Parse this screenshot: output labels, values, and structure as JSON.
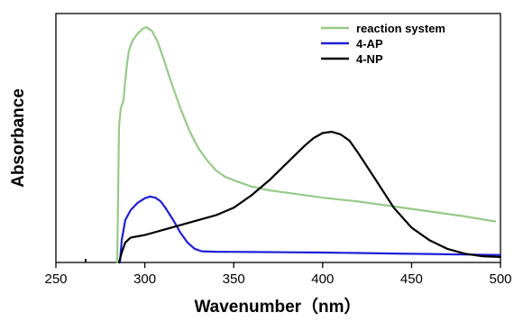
{
  "chart_data": {
    "type": "line",
    "title": "",
    "xlabel": "Wavenumber（nm）",
    "ylabel": "Absorbance",
    "xlim": [
      250,
      500
    ],
    "ylim": [
      0,
      1
    ],
    "x_ticks": [
      250,
      300,
      350,
      400,
      450,
      500
    ],
    "y_ticks_visible": false,
    "grid": false,
    "legend_position": "top-right",
    "series": [
      {
        "name": "reaction system",
        "color": "#98c98a",
        "points": [
          [
            284.5,
            0.0
          ],
          [
            285.5,
            0.55
          ],
          [
            286.5,
            0.62
          ],
          [
            288,
            0.65
          ],
          [
            289,
            0.73
          ],
          [
            290,
            0.8
          ],
          [
            291,
            0.85
          ],
          [
            293,
            0.89
          ],
          [
            296,
            0.92
          ],
          [
            299,
            0.94
          ],
          [
            301,
            0.945
          ],
          [
            304,
            0.93
          ],
          [
            307,
            0.89
          ],
          [
            310,
            0.83
          ],
          [
            315,
            0.72
          ],
          [
            320,
            0.62
          ],
          [
            325,
            0.53
          ],
          [
            330,
            0.46
          ],
          [
            335,
            0.41
          ],
          [
            340,
            0.37
          ],
          [
            345,
            0.345
          ],
          [
            350,
            0.33
          ],
          [
            360,
            0.305
          ],
          [
            370,
            0.29
          ],
          [
            380,
            0.28
          ],
          [
            400,
            0.26
          ],
          [
            420,
            0.245
          ],
          [
            440,
            0.225
          ],
          [
            460,
            0.205
          ],
          [
            480,
            0.185
          ],
          [
            497,
            0.165
          ]
        ]
      },
      {
        "name": "4-AP",
        "color": "#1f1fd6",
        "points": [
          [
            286,
            0.0
          ],
          [
            287,
            0.09
          ],
          [
            289,
            0.17
          ],
          [
            292,
            0.21
          ],
          [
            296,
            0.24
          ],
          [
            300,
            0.258
          ],
          [
            303,
            0.265
          ],
          [
            306,
            0.26
          ],
          [
            309,
            0.245
          ],
          [
            312,
            0.215
          ],
          [
            316,
            0.17
          ],
          [
            320,
            0.12
          ],
          [
            324,
            0.08
          ],
          [
            328,
            0.055
          ],
          [
            332,
            0.045
          ],
          [
            340,
            0.043
          ],
          [
            360,
            0.042
          ],
          [
            380,
            0.041
          ],
          [
            400,
            0.04
          ],
          [
            420,
            0.038
          ],
          [
            440,
            0.036
          ],
          [
            460,
            0.034
          ],
          [
            480,
            0.032
          ],
          [
            500,
            0.03
          ]
        ]
      },
      {
        "name": "4-NP",
        "color": "#000000",
        "points": [
          [
            285.5,
            0.0
          ],
          [
            287,
            0.04
          ],
          [
            289,
            0.08
          ],
          [
            292,
            0.1
          ],
          [
            296,
            0.105
          ],
          [
            300,
            0.11
          ],
          [
            310,
            0.13
          ],
          [
            320,
            0.15
          ],
          [
            330,
            0.17
          ],
          [
            340,
            0.19
          ],
          [
            350,
            0.22
          ],
          [
            360,
            0.27
          ],
          [
            370,
            0.33
          ],
          [
            380,
            0.4
          ],
          [
            390,
            0.47
          ],
          [
            395,
            0.5
          ],
          [
            400,
            0.52
          ],
          [
            405,
            0.525
          ],
          [
            410,
            0.515
          ],
          [
            415,
            0.49
          ],
          [
            420,
            0.44
          ],
          [
            430,
            0.33
          ],
          [
            440,
            0.22
          ],
          [
            450,
            0.14
          ],
          [
            460,
            0.09
          ],
          [
            470,
            0.055
          ],
          [
            480,
            0.035
          ],
          [
            490,
            0.025
          ],
          [
            500,
            0.022
          ]
        ]
      }
    ]
  }
}
